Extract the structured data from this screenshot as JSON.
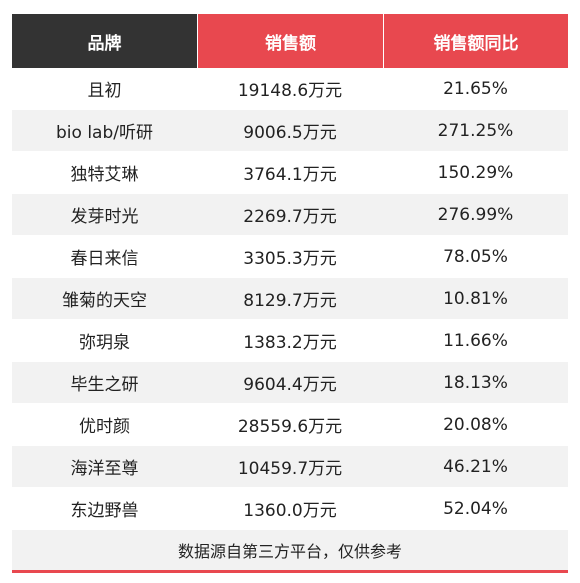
{
  "table": {
    "headers": [
      "品牌",
      "销售额",
      "销售额同比"
    ],
    "rows": [
      {
        "brand": "且初",
        "sales": "19148.6万元",
        "yoy": "21.65%"
      },
      {
        "brand": "bio lab/听研",
        "sales": "9006.5万元",
        "yoy": "271.25%"
      },
      {
        "brand": "独特艾琳",
        "sales": "3764.1万元",
        "yoy": "150.29%"
      },
      {
        "brand": "发芽时光",
        "sales": "2269.7万元",
        "yoy": "276.99%"
      },
      {
        "brand": "春日来信",
        "sales": "3305.3万元",
        "yoy": "78.05%"
      },
      {
        "brand": "雏菊的天空",
        "sales": "8129.7万元",
        "yoy": "10.81%"
      },
      {
        "brand": "弥玥泉",
        "sales": "1383.2万元",
        "yoy": "11.66%"
      },
      {
        "brand": "毕生之研",
        "sales": "9604.4万元",
        "yoy": "18.13%"
      },
      {
        "brand": "优时颜",
        "sales": "28559.6万元",
        "yoy": "20.08%"
      },
      {
        "brand": "海洋至尊",
        "sales": "10459.7万元",
        "yoy": "46.21%"
      },
      {
        "brand": "东边野兽",
        "sales": "1360.0万元",
        "yoy": "52.04%"
      }
    ],
    "footer": "数据源自第三方平台，仅供参考"
  },
  "colors": {
    "header_dark": "#333333",
    "header_accent": "#e8484f",
    "row_stripe": "#f2f2f2"
  }
}
